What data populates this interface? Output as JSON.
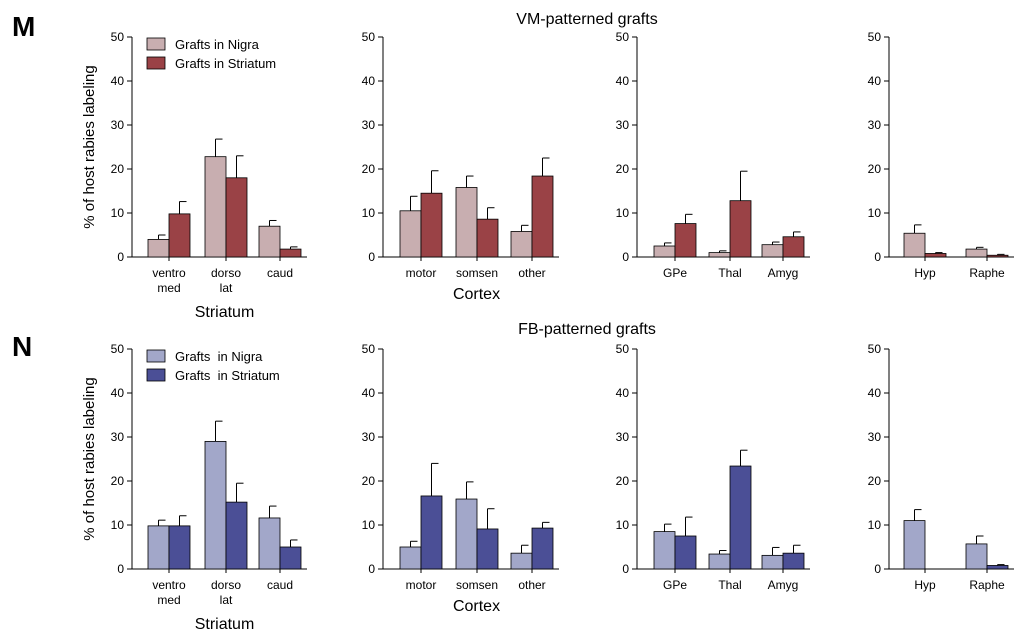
{
  "colors": {
    "vm_nigra": "#c8aeb0",
    "vm_striatum": "#9a4246",
    "fb_nigra": "#a2a7c9",
    "fb_striatum": "#4b4f96"
  },
  "chart_data": [
    {
      "panel": "M",
      "type": "bar",
      "title": "VM-patterned grafts",
      "ylabel": "% of host rabies labeling",
      "ylim": [
        0,
        50
      ],
      "yticks": [
        0,
        10,
        20,
        30,
        40,
        50
      ],
      "legend": {
        "placement": "top-left of first subplot",
        "entries": [
          "Grafts in Nigra",
          "Grafts in Striatum"
        ]
      },
      "series_colors": [
        "#c8aeb0",
        "#9a4246"
      ],
      "groups": [
        {
          "xlabel": "Striatum",
          "categories": [
            [
              "ventro",
              "med"
            ],
            [
              "dorso",
              "lat"
            ],
            [
              "caud"
            ]
          ],
          "series": [
            {
              "name": "Grafts in Nigra",
              "values": [
                4,
                22.8,
                7
              ],
              "errors": [
                1,
                4,
                1.3
              ]
            },
            {
              "name": "Grafts in Striatum",
              "values": [
                9.8,
                18,
                1.8
              ],
              "errors": [
                2.8,
                5,
                0.5
              ]
            }
          ]
        },
        {
          "xlabel": "Cortex",
          "categories": [
            [
              "motor"
            ],
            [
              "somsen"
            ],
            [
              "other"
            ]
          ],
          "series": [
            {
              "name": "Grafts in Nigra",
              "values": [
                10.5,
                15.8,
                5.8
              ],
              "errors": [
                3.3,
                2.6,
                1.4
              ]
            },
            {
              "name": "Grafts in Striatum",
              "values": [
                14.5,
                8.6,
                18.4
              ],
              "errors": [
                5.1,
                2.6,
                4.1
              ]
            }
          ]
        },
        {
          "xlabel": "",
          "categories": [
            [
              "GPe"
            ],
            [
              "Thal"
            ],
            [
              "Amyg"
            ]
          ],
          "series": [
            {
              "name": "Grafts in Nigra",
              "values": [
                2.5,
                1,
                2.8
              ],
              "errors": [
                0.7,
                0.4,
                0.6
              ]
            },
            {
              "name": "Grafts in Striatum",
              "values": [
                7.6,
                12.8,
                4.6
              ],
              "errors": [
                2.1,
                6.7,
                1.1
              ]
            }
          ]
        },
        {
          "xlabel": "",
          "categories": [
            [
              "Hyp"
            ],
            [
              "Raphe"
            ]
          ],
          "series": [
            {
              "name": "Grafts in Nigra",
              "values": [
                5.4,
                1.8
              ],
              "errors": [
                1.9,
                0.4
              ]
            },
            {
              "name": "Grafts in Striatum",
              "values": [
                0.8,
                0.4
              ],
              "errors": [
                0.2,
                0.2
              ]
            }
          ]
        }
      ]
    },
    {
      "panel": "N",
      "type": "bar",
      "title": "FB-patterned grafts",
      "ylabel": "% of host rabies labeling",
      "ylim": [
        0,
        50
      ],
      "yticks": [
        0,
        10,
        20,
        30,
        40,
        50
      ],
      "legend": {
        "placement": "top-left of first subplot",
        "entries": [
          "Grafts  in Nigra",
          "Grafts  in Striatum"
        ]
      },
      "series_colors": [
        "#a2a7c9",
        "#4b4f96"
      ],
      "groups": [
        {
          "xlabel": "Striatum",
          "categories": [
            [
              "ventro",
              "med"
            ],
            [
              "dorso",
              "lat"
            ],
            [
              "caud"
            ]
          ],
          "series": [
            {
              "name": "Grafts  in Nigra",
              "values": [
                9.8,
                29,
                11.6
              ],
              "errors": [
                1.3,
                4.6,
                2.7
              ]
            },
            {
              "name": "Grafts  in Striatum",
              "values": [
                9.8,
                15.2,
                5
              ],
              "errors": [
                2.3,
                4.3,
                1.6
              ]
            }
          ]
        },
        {
          "xlabel": "Cortex",
          "categories": [
            [
              "motor"
            ],
            [
              "somsen"
            ],
            [
              "other"
            ]
          ],
          "series": [
            {
              "name": "Grafts  in Nigra",
              "values": [
                5,
                15.9,
                3.6
              ],
              "errors": [
                1.3,
                3.9,
                1.8
              ]
            },
            {
              "name": "Grafts  in Striatum",
              "values": [
                16.6,
                9.1,
                9.3
              ],
              "errors": [
                7.4,
                4.6,
                1.3
              ]
            }
          ]
        },
        {
          "xlabel": "",
          "categories": [
            [
              "GPe"
            ],
            [
              "Thal"
            ],
            [
              "Amyg"
            ]
          ],
          "series": [
            {
              "name": "Grafts  in Nigra",
              "values": [
                8.5,
                3.4,
                3.1
              ],
              "errors": [
                1.7,
                0.8,
                1.8
              ]
            },
            {
              "name": "Grafts  in Striatum",
              "values": [
                7.5,
                23.4,
                3.6
              ],
              "errors": [
                4.3,
                3.6,
                1.8
              ]
            }
          ]
        },
        {
          "xlabel": "",
          "categories": [
            [
              "Hyp"
            ],
            [
              "Raphe"
            ]
          ],
          "series": [
            {
              "name": "Grafts  in Nigra",
              "values": [
                11,
                5.7
              ],
              "errors": [
                2.5,
                1.8
              ]
            },
            {
              "name": "Grafts  in Striatum",
              "values": [
                0,
                0.8
              ],
              "errors": [
                0,
                0.2
              ]
            }
          ]
        }
      ]
    }
  ]
}
